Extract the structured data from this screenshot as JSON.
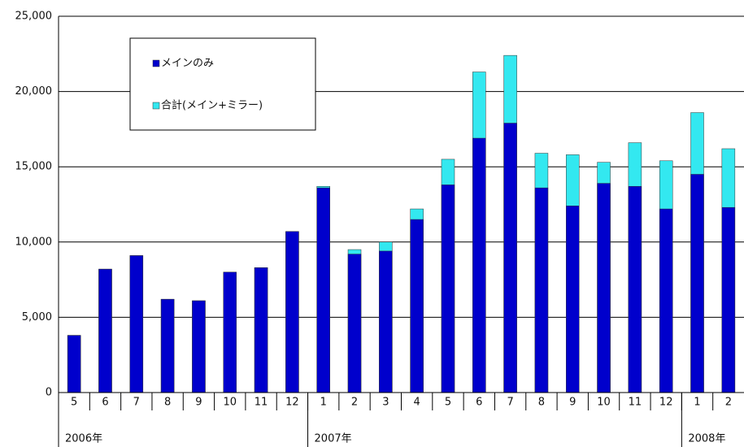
{
  "chart_data": {
    "type": "bar",
    "categories": [
      "5",
      "6",
      "7",
      "8",
      "9",
      "10",
      "11",
      "12",
      "1",
      "2",
      "3",
      "4",
      "5",
      "6",
      "7",
      "8",
      "9",
      "10",
      "11",
      "12",
      "1",
      "2"
    ],
    "x_groups": [
      "2006年",
      "2007年",
      "2008年"
    ],
    "series": [
      {
        "name": "合計(メイン+ミラー)",
        "color": "#33e8f0",
        "values": [
          3800,
          8200,
          9100,
          6200,
          6100,
          8000,
          8300,
          10700,
          13700,
          9500,
          10000,
          12200,
          15500,
          21300,
          22400,
          15900,
          15800,
          15300,
          16600,
          15400,
          18600,
          16200
        ]
      },
      {
        "name": "メインのみ",
        "color": "#0000cc",
        "values": [
          3800,
          8200,
          9100,
          6200,
          6100,
          8000,
          8300,
          10700,
          13600,
          9200,
          9400,
          11500,
          13800,
          16900,
          17900,
          13600,
          12400,
          13900,
          13700,
          12200,
          14500,
          12300
        ]
      }
    ],
    "legend_order": [
      1,
      0
    ],
    "ylim": [
      0,
      25000
    ],
    "yticks": [
      0,
      {
        "value": 5000,
        "label": "5,000"
      },
      {
        "value": 10000,
        "label": "10,000"
      },
      {
        "value": 15000,
        "label": "15,000"
      },
      {
        "value": 20000,
        "label": "20,000"
      },
      {
        "value": 25000,
        "label": "25,000"
      }
    ],
    "grid": true
  }
}
